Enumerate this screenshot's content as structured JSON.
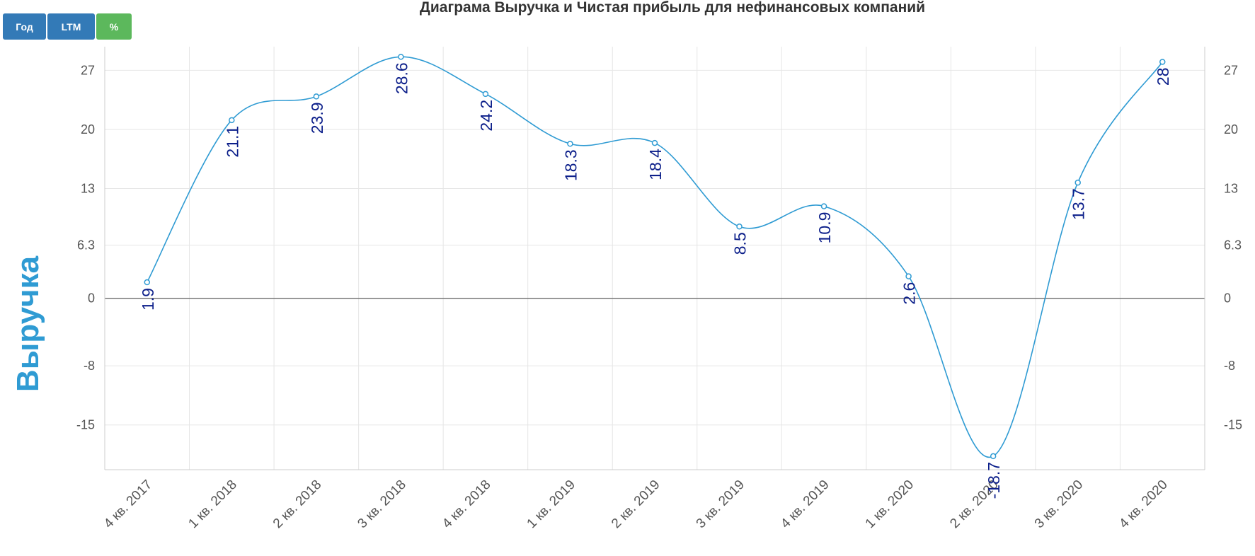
{
  "buttons": {
    "year": "Год",
    "ltm": "LTM",
    "percent": "%"
  },
  "colors": {
    "series": "#2f9bd3",
    "data_label": "#0c1f8a",
    "button_blue": "#337ab7",
    "button_green": "#5cb85c"
  },
  "chart_data": {
    "type": "line",
    "title": "Диаграма Выручка и Чистая прибыль для нефинансовых компаний",
    "ylabel": "Выручка",
    "xlabel": "",
    "categories": [
      "4 кв. 2017",
      "1 кв. 2018",
      "2 кв. 2018",
      "3 кв. 2018",
      "4 кв. 2018",
      "1 кв. 2019",
      "2 кв. 2019",
      "3 кв. 2019",
      "4 кв. 2019",
      "1 кв. 2020",
      "2 кв. 2020",
      "3 кв. 2020",
      "4 кв. 2020"
    ],
    "series": [
      {
        "values": [
          1.9,
          21.1,
          23.9,
          28.6,
          24.2,
          18.3,
          18.4,
          8.5,
          10.9,
          2.6,
          -18.7,
          13.7,
          28
        ]
      }
    ],
    "y_ticks": [
      27,
      20,
      13,
      6.3,
      0,
      -8,
      -15
    ],
    "y_tick_labels": [
      "27",
      "20",
      "13",
      "6.3",
      "0",
      "-8",
      "-15"
    ],
    "ylim": [
      -20.3,
      29.8
    ],
    "grid": true,
    "dual_y_axis": true,
    "smooth": true
  }
}
